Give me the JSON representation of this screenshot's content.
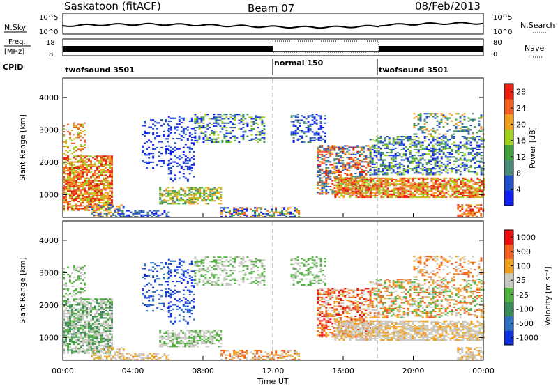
{
  "header": {
    "station": "Saskatoon (fitACF)",
    "beam": "Beam 07",
    "date": "08/Feb/2013"
  },
  "summary_panels": {
    "nsky": {
      "label": "N.Sky",
      "ticks": [
        "10^5",
        "10^0"
      ]
    },
    "nsearch": {
      "label": "N.Search",
      "ticks": [
        "10^5",
        "10^0"
      ]
    },
    "freq": {
      "label_line1": "Freq.",
      "label_line2": "[MHz]",
      "ticks": [
        "18",
        "8"
      ]
    },
    "nave": {
      "label": "Nave",
      "ticks": [
        "80",
        "0"
      ]
    },
    "cpid": {
      "label": "CPID",
      "segments": [
        {
          "name": "twofsound 3501",
          "start_hour": 0,
          "end_hour": 12
        },
        {
          "name": "normal 150",
          "start_hour": 12,
          "end_hour": 18
        },
        {
          "name": "twofsound 3501",
          "start_hour": 18,
          "end_hour": 24
        }
      ]
    }
  },
  "chart_data": [
    {
      "type": "heatmap",
      "name": "power",
      "ylabel": "Slant Range [km]",
      "ylim": [
        300,
        4600
      ],
      "yticks": [
        1000,
        2000,
        3000,
        4000
      ],
      "x_range_hours": [
        0,
        24
      ],
      "colorbar": {
        "label": "Power [dB]",
        "ticks": [
          4,
          8,
          12,
          16,
          20,
          24,
          28
        ],
        "range": [
          0,
          30
        ],
        "colors": [
          "#1020f0",
          "#2050c8",
          "#4a8a7a",
          "#40a040",
          "#a0d020",
          "#f0a020",
          "#f06020",
          "#e82010"
        ]
      }
    },
    {
      "type": "heatmap",
      "name": "velocity",
      "ylabel": "Slant Range [km]",
      "ylim": [
        300,
        4600
      ],
      "yticks": [
        1000,
        2000,
        3000,
        4000
      ],
      "x_range_hours": [
        0,
        24
      ],
      "xlabel": "Time UT",
      "xticks": [
        "00:00",
        "04:00",
        "08:00",
        "12:00",
        "16:00",
        "20:00",
        "00:00"
      ],
      "colorbar": {
        "label": "Velocity [m s⁻¹]",
        "ticks": [
          "1000",
          "500",
          "100",
          "25",
          "-25",
          "-100",
          "-500",
          "-1000"
        ],
        "colors": [
          "#1030e0",
          "#3070c0",
          "#3a8a5a",
          "#50b040",
          "#c8c8c0",
          "#f0a020",
          "#f06020",
          "#e81010"
        ]
      }
    }
  ]
}
